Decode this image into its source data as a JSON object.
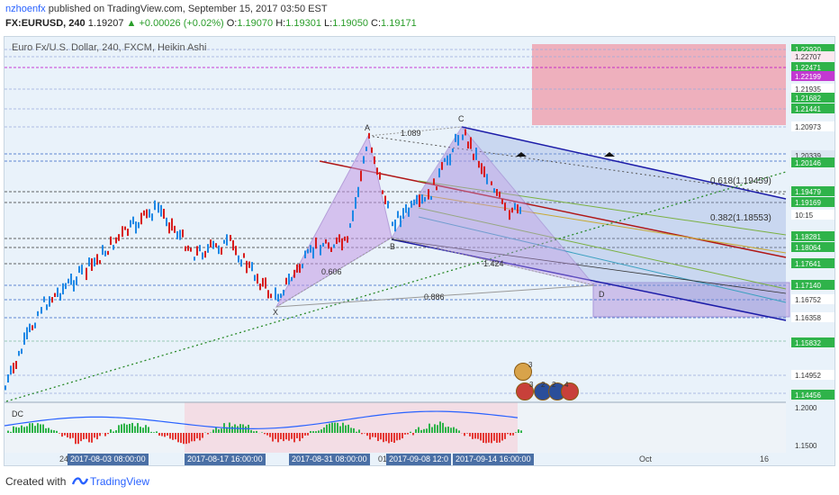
{
  "header": {
    "user": "nzhoenfx",
    "published_text": "published on TradingView.com, September 15, 2017 03:50 EST",
    "symbol_line": "FX:EURUSD, 240",
    "last": "1.19207",
    "change": "▲ +0.00026 (+0.02%)",
    "o_label": "O:",
    "o_val": "1.19070",
    "h_label": "H:",
    "h_val": "1.19301",
    "l_label": "L:",
    "l_val": "1.19050",
    "c_label": "C:",
    "c_val": "1.19171"
  },
  "chart": {
    "title": "Euro Fx/U.S. Dollar, 240, FXCM, Heikin Ashi",
    "price_labels": [
      {
        "text": "1.22920",
        "bg": "#2fb34a",
        "fg": "#fff"
      },
      {
        "text": "1.22707",
        "bg": "#fce8ef",
        "fg": "#333"
      },
      {
        "text": "1.22471",
        "bg": "#2fb34a",
        "fg": "#fff"
      },
      {
        "text": "1.22199",
        "bg": "#c239d1",
        "fg": "#fff"
      },
      {
        "text": "1.21935",
        "bg": "#ffffff",
        "fg": "#333"
      },
      {
        "text": "1.21682",
        "bg": "#2fb34a",
        "fg": "#fff"
      },
      {
        "text": "1.21441",
        "bg": "#2fb34a",
        "fg": "#fff"
      },
      {
        "text": "1.20973",
        "bg": "#ffffff",
        "fg": "#333"
      },
      {
        "text": "1.20339",
        "bg": "#dce6f2",
        "fg": "#333"
      },
      {
        "text": "1.20146",
        "bg": "#2fb34a",
        "fg": "#fff"
      },
      {
        "text": "1.19479",
        "bg": "#2fb34a",
        "fg": "#fff"
      },
      {
        "text": "1.19169",
        "bg": "#2fb34a",
        "fg": "#fff"
      },
      {
        "text": "10:15",
        "bg": "#ffffff",
        "fg": "#333"
      },
      {
        "text": "1.18281",
        "bg": "#2fb34a",
        "fg": "#fff"
      },
      {
        "text": "1.18064",
        "bg": "#2fb34a",
        "fg": "#fff"
      },
      {
        "text": "1.17641",
        "bg": "#2fb34a",
        "fg": "#fff"
      },
      {
        "text": "1.17140",
        "bg": "#2fb34a",
        "fg": "#fff"
      },
      {
        "text": "1.16752",
        "bg": "#ffffff",
        "fg": "#333"
      },
      {
        "text": "1.16358",
        "bg": "#ffffff",
        "fg": "#333"
      },
      {
        "text": "1.15832",
        "bg": "#2fb34a",
        "fg": "#fff"
      },
      {
        "text": "1.14952",
        "bg": "#ffffff",
        "fg": "#333"
      },
      {
        "text": "1.14456",
        "bg": "#2fb34a",
        "fg": "#fff"
      },
      {
        "text": "1.2000",
        "bg": "transparent",
        "fg": "#333"
      },
      {
        "text": "1.1500",
        "bg": "transparent",
        "fg": "#333"
      }
    ],
    "pattern_points": [
      "X",
      "A",
      "B",
      "C",
      "D"
    ],
    "ratios": {
      "xb": "0.606",
      "ac": "1.089",
      "bd": "1.424",
      "xd": "0.886"
    },
    "fib_labels": [
      "0.618(1.19459)",
      "0.382(1.18553)"
    ],
    "time_labels": [
      "2017-08-03 08:00:00",
      "2017-08-17 16:00:00",
      "2017-08-31 08:00:00",
      "2017-09-08 12:0",
      "2017-09-14 16:00:00"
    ],
    "time_plain": [
      "24",
      "01",
      "Oct",
      "16"
    ],
    "indicator_label": "DC",
    "event_counts": [
      "3",
      "3",
      "2",
      "2",
      "4"
    ]
  },
  "footer": {
    "created_with": "Created with",
    "brand": "TradingView"
  }
}
